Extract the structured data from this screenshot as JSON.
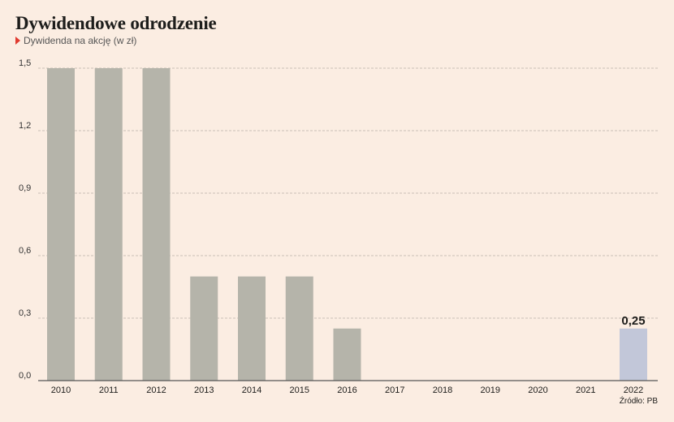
{
  "chart_data": {
    "type": "bar",
    "title": "Dywidendowe odrodzenie",
    "subtitle": "Dywidenda na akcję (w zł)",
    "source": "Źródło: PB",
    "categories": [
      "2010",
      "2011",
      "2012",
      "2013",
      "2014",
      "2015",
      "2016",
      "2017",
      "2018",
      "2019",
      "2020",
      "2021",
      "2022"
    ],
    "values": [
      1.5,
      1.5,
      1.5,
      0.5,
      0.5,
      0.5,
      0.25,
      0,
      0,
      0,
      0,
      0,
      0.25
    ],
    "highlight": {
      "index": 12,
      "label": "0,25"
    },
    "yticks": [
      "0,0",
      "0,3",
      "0,6",
      "0,9",
      "1,2",
      "1,5"
    ],
    "ytick_values": [
      0,
      0.3,
      0.6,
      0.9,
      1.2,
      1.5
    ],
    "ylim": [
      0,
      1.5
    ],
    "grid": true,
    "legend": "none",
    "colors": {
      "bar": "#b5b4aa",
      "bar_highlight": "#c2c7d9",
      "grid": "#b8aea6",
      "axis": "#555555",
      "marker": "#e03a2f",
      "background": "#fbede2"
    }
  }
}
